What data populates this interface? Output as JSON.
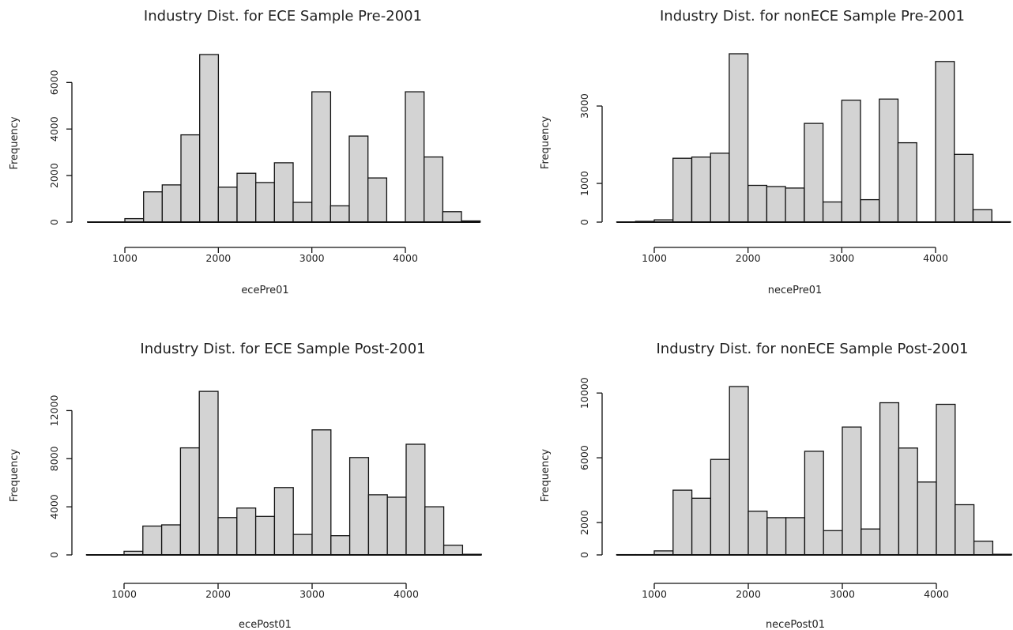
{
  "chart_data": [
    {
      "type": "bar",
      "title": "Industry Dist. for ECE Sample Pre-2001",
      "xlabel": "ecePre01",
      "ylabel": "Frequency",
      "bin_edges": [
        600,
        800,
        1000,
        1200,
        1400,
        1600,
        1800,
        2000,
        2200,
        2400,
        2600,
        2800,
        3000,
        3200,
        3400,
        3600,
        3800,
        4000,
        4200,
        4400,
        4600,
        4800
      ],
      "values": [
        10,
        10,
        150,
        1300,
        1600,
        3750,
        7200,
        1500,
        2100,
        1700,
        2550,
        850,
        5600,
        700,
        3700,
        1900,
        0,
        5600,
        2800,
        450,
        50
      ],
      "xlim": [
        600,
        4800
      ],
      "ylim": [
        0,
        7200
      ],
      "xticks": [
        1000,
        2000,
        3000,
        4000
      ],
      "yticks": [
        0,
        2000,
        4000,
        6000
      ]
    },
    {
      "type": "bar",
      "title": "Industry Dist. for nonECE Sample Pre-2001",
      "xlabel": "necePre01",
      "ylabel": "Frequency",
      "bin_edges": [
        600,
        800,
        1000,
        1200,
        1400,
        1600,
        1800,
        2000,
        2200,
        2400,
        2600,
        2800,
        3000,
        3200,
        3400,
        3600,
        3800,
        4000,
        4200,
        4400,
        4600,
        4800
      ],
      "values": [
        5,
        20,
        60,
        1650,
        1680,
        1780,
        4350,
        950,
        920,
        880,
        2550,
        520,
        3150,
        580,
        3180,
        2050,
        0,
        4150,
        1750,
        320,
        10
      ],
      "xlim": [
        600,
        4800
      ],
      "ylim": [
        0,
        4350
      ],
      "xticks": [
        1000,
        2000,
        3000,
        4000
      ],
      "yticks": [
        0,
        1000,
        3000
      ]
    },
    {
      "type": "bar",
      "title": "Industry Dist. for ECE Sample Post-2001",
      "xlabel": "ecePost01",
      "ylabel": "Frequency",
      "bin_edges": [
        600,
        800,
        1000,
        1200,
        1400,
        1600,
        1800,
        2000,
        2200,
        2400,
        2600,
        2800,
        3000,
        3200,
        3400,
        3600,
        3800,
        4000,
        4200,
        4400,
        4600,
        4800
      ],
      "values": [
        20,
        20,
        300,
        2400,
        2500,
        8900,
        13600,
        3100,
        3900,
        3200,
        5600,
        1700,
        10400,
        1600,
        8100,
        5000,
        4800,
        9200,
        4000,
        800,
        50
      ],
      "xlim": [
        600,
        4800
      ],
      "ylim": [
        0,
        14000
      ],
      "xticks": [
        1000,
        2000,
        3000,
        4000
      ],
      "yticks": [
        0,
        4000,
        8000,
        12000
      ]
    },
    {
      "type": "bar",
      "title": "Industry Dist. for nonECE Sample Post-2001",
      "xlabel": "necePost01",
      "ylabel": "Frequency",
      "bin_edges": [
        600,
        800,
        1000,
        1200,
        1400,
        1600,
        1800,
        2000,
        2200,
        2400,
        2600,
        2800,
        3000,
        3200,
        3400,
        3600,
        3800,
        4000,
        4200,
        4400,
        4600,
        4800
      ],
      "values": [
        20,
        20,
        250,
        4000,
        3500,
        5900,
        10400,
        2700,
        2300,
        2300,
        6400,
        1500,
        7900,
        1600,
        9400,
        6600,
        4500,
        9300,
        3100,
        850,
        40
      ],
      "xlim": [
        600,
        4800
      ],
      "ylim": [
        0,
        10400
      ],
      "xticks": [
        1000,
        2000,
        3000,
        4000
      ],
      "yticks": [
        0,
        2000,
        6000,
        10000
      ]
    }
  ]
}
